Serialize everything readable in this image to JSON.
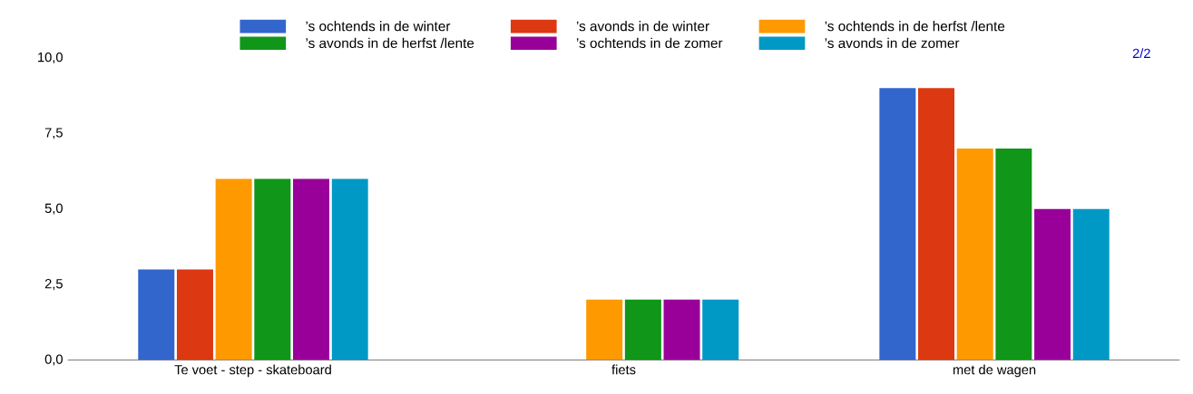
{
  "chart_data": {
    "type": "bar",
    "categories": [
      "Te voet - step - skateboard",
      "fiets",
      "met de wagen"
    ],
    "series": [
      {
        "name": "’s ochtends in de winter",
        "color": "#3366cc",
        "values": [
          3,
          0,
          9
        ]
      },
      {
        "name": "’s avonds in de winter",
        "color": "#dc3912",
        "values": [
          3,
          0,
          9
        ]
      },
      {
        "name": "’s ochtends in de herfst /lente",
        "color": "#ff9900",
        "values": [
          6,
          2,
          7
        ]
      },
      {
        "name": "’s avonds in de herfst /lente",
        "color": "#109618",
        "values": [
          6,
          2,
          7
        ]
      },
      {
        "name": "’s ochtends in de zomer",
        "color": "#990099",
        "values": [
          6,
          2,
          5
        ]
      },
      {
        "name": "’s avonds in de zomer",
        "color": "#0099c6",
        "values": [
          6,
          2,
          5
        ]
      }
    ],
    "ylim": [
      0,
      10
    ],
    "yticks": [
      {
        "value": 0,
        "label": "0,0"
      },
      {
        "value": 2.5,
        "label": "2,5"
      },
      {
        "value": 5,
        "label": "5,0"
      },
      {
        "value": 7.5,
        "label": "7,5"
      },
      {
        "value": 10,
        "label": "10,0"
      }
    ],
    "legend": "top",
    "annotations": [
      "2/2"
    ]
  }
}
